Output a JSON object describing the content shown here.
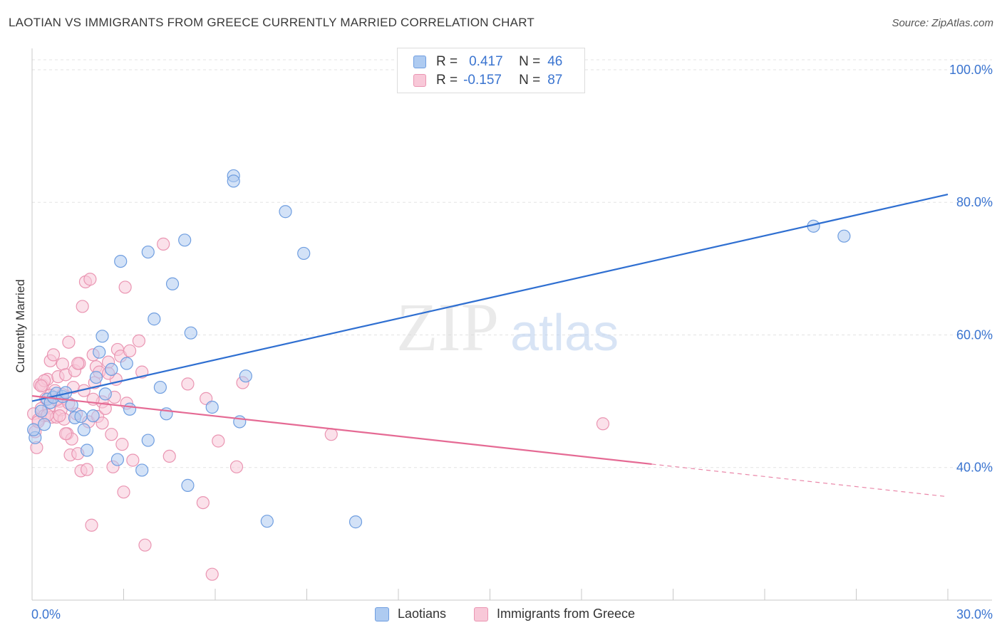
{
  "header": {
    "title": "LAOTIAN VS IMMIGRANTS FROM GREECE CURRENTLY MARRIED CORRELATION CHART",
    "source": "Source: ZipAtlas.com"
  },
  "legend_top": {
    "rows": [
      {
        "r_label": "R =",
        "r_value": "0.417",
        "n_label": "N =",
        "n_value": "46"
      },
      {
        "r_label": "R =",
        "r_value": "-0.157",
        "n_label": "N =",
        "n_value": "87"
      }
    ]
  },
  "watermark": {
    "zip": "ZIP",
    "atlas": "atlas"
  },
  "colors": {
    "blue_fill": "#aecbf1",
    "blue_stroke": "#6f9ee0",
    "blue_line": "#2f6fd1",
    "pink_fill": "#f8c8d8",
    "pink_stroke": "#ea95b2",
    "pink_line": "#e56a94",
    "tick_label": "#3a74d0",
    "grid": "#e3e3e3"
  },
  "chart_data": {
    "type": "scatter",
    "title": "LAOTIAN VS IMMIGRANTS FROM GREECE CURRENTLY MARRIED CORRELATION CHART",
    "xlabel": "",
    "ylabel": "Currently Married",
    "xlim": [
      0,
      30
    ],
    "ylim": [
      20,
      103
    ],
    "x_tick_labels": [
      "0.0%",
      "30.0%"
    ],
    "y_ticks": [
      40,
      60,
      80,
      100
    ],
    "y_tick_labels": [
      "40.0%",
      "60.0%",
      "80.0%",
      "100.0%"
    ],
    "grid": true,
    "legend_position": "top-center",
    "series": [
      {
        "name": "Laotians",
        "color": "#6f9ee0",
        "r": 0.417,
        "n": 46,
        "trend": {
          "x": [
            0,
            30
          ],
          "y": [
            50.0,
            81.2
          ],
          "dashed_from": null
        },
        "points": [
          [
            0.1,
            44.5
          ],
          [
            0.3,
            48.5
          ],
          [
            0.4,
            46.5
          ],
          [
            0.5,
            50.3
          ],
          [
            0.6,
            49.8
          ],
          [
            0.7,
            50.6
          ],
          [
            0.8,
            51.2
          ],
          [
            1.0,
            50.7
          ],
          [
            1.1,
            51.3
          ],
          [
            1.3,
            49.4
          ],
          [
            1.4,
            47.5
          ],
          [
            1.6,
            47.7
          ],
          [
            1.7,
            45.7
          ],
          [
            1.8,
            42.6
          ],
          [
            2.0,
            47.8
          ],
          [
            2.1,
            53.6
          ],
          [
            2.2,
            57.4
          ],
          [
            2.3,
            59.8
          ],
          [
            2.4,
            51.1
          ],
          [
            2.6,
            54.8
          ],
          [
            2.8,
            41.2
          ],
          [
            2.9,
            71.1
          ],
          [
            3.1,
            55.7
          ],
          [
            3.2,
            48.8
          ],
          [
            3.6,
            39.6
          ],
          [
            3.8,
            44.1
          ],
          [
            3.8,
            72.5
          ],
          [
            4.0,
            62.4
          ],
          [
            4.2,
            52.1
          ],
          [
            4.4,
            48.1
          ],
          [
            4.6,
            67.7
          ],
          [
            5.0,
            74.3
          ],
          [
            5.1,
            37.3
          ],
          [
            5.2,
            60.3
          ],
          [
            5.9,
            49.1
          ],
          [
            6.6,
            84.0
          ],
          [
            6.6,
            83.2
          ],
          [
            6.8,
            46.9
          ],
          [
            7.0,
            53.8
          ],
          [
            7.7,
            31.9
          ],
          [
            8.3,
            78.6
          ],
          [
            8.9,
            72.3
          ],
          [
            10.6,
            31.8
          ],
          [
            25.6,
            76.4
          ],
          [
            26.6,
            74.9
          ],
          [
            0.05,
            45.7
          ]
        ]
      },
      {
        "name": "Immigrants from Greece",
        "color": "#ea95b2",
        "r": -0.157,
        "n": 87,
        "trend": {
          "x": [
            0,
            30
          ],
          "y": [
            50.8,
            35.6
          ],
          "dashed_from": 20.3
        },
        "points": [
          [
            0.05,
            48.1
          ],
          [
            0.1,
            45.4
          ],
          [
            0.15,
            43.0
          ],
          [
            0.2,
            47.2
          ],
          [
            0.25,
            52.5
          ],
          [
            0.3,
            48.9
          ],
          [
            0.35,
            52.4
          ],
          [
            0.4,
            47.8
          ],
          [
            0.45,
            50.4
          ],
          [
            0.5,
            53.3
          ],
          [
            0.55,
            49.0
          ],
          [
            0.6,
            56.1
          ],
          [
            0.65,
            47.6
          ],
          [
            0.7,
            57.0
          ],
          [
            0.75,
            51.6
          ],
          [
            0.8,
            47.6
          ],
          [
            0.85,
            53.7
          ],
          [
            0.9,
            50.0
          ],
          [
            0.95,
            48.7
          ],
          [
            1.0,
            55.6
          ],
          [
            1.05,
            47.3
          ],
          [
            1.1,
            54.0
          ],
          [
            1.15,
            45.1
          ],
          [
            1.2,
            58.9
          ],
          [
            1.25,
            41.9
          ],
          [
            1.3,
            44.3
          ],
          [
            1.35,
            52.1
          ],
          [
            1.4,
            54.6
          ],
          [
            1.45,
            48.1
          ],
          [
            1.5,
            42.1
          ],
          [
            1.55,
            55.7
          ],
          [
            1.6,
            39.5
          ],
          [
            1.65,
            64.3
          ],
          [
            1.7,
            51.6
          ],
          [
            1.75,
            68.0
          ],
          [
            1.8,
            39.7
          ],
          [
            1.85,
            46.9
          ],
          [
            1.9,
            68.4
          ],
          [
            1.95,
            31.3
          ],
          [
            2.0,
            57.0
          ],
          [
            2.05,
            52.8
          ],
          [
            2.1,
            55.2
          ],
          [
            2.15,
            47.7
          ],
          [
            2.2,
            54.4
          ],
          [
            2.3,
            49.9
          ],
          [
            2.4,
            48.9
          ],
          [
            2.5,
            55.9
          ],
          [
            2.6,
            45.0
          ],
          [
            2.65,
            40.1
          ],
          [
            2.7,
            50.6
          ],
          [
            2.75,
            53.3
          ],
          [
            2.8,
            57.8
          ],
          [
            2.9,
            56.8
          ],
          [
            2.95,
            43.5
          ],
          [
            3.0,
            36.3
          ],
          [
            3.05,
            67.2
          ],
          [
            3.1,
            49.7
          ],
          [
            3.2,
            57.6
          ],
          [
            3.3,
            41.1
          ],
          [
            3.5,
            59.1
          ],
          [
            3.6,
            54.4
          ],
          [
            3.7,
            28.3
          ],
          [
            4.3,
            73.7
          ],
          [
            4.5,
            41.7
          ],
          [
            5.1,
            52.6
          ],
          [
            5.6,
            34.7
          ],
          [
            5.7,
            50.4
          ],
          [
            5.9,
            23.9
          ],
          [
            6.1,
            44.0
          ],
          [
            6.7,
            40.1
          ],
          [
            6.9,
            52.8
          ],
          [
            9.8,
            45.0
          ],
          [
            18.7,
            46.6
          ],
          [
            0.4,
            53.1
          ],
          [
            0.6,
            50.9
          ],
          [
            0.9,
            47.8
          ],
          [
            1.0,
            51.0
          ],
          [
            1.2,
            49.7
          ],
          [
            1.5,
            55.7
          ],
          [
            2.0,
            50.3
          ],
          [
            2.3,
            46.7
          ],
          [
            2.5,
            54.2
          ],
          [
            0.2,
            46.9
          ],
          [
            0.3,
            52.3
          ],
          [
            0.5,
            47.9
          ],
          [
            0.8,
            50.2
          ],
          [
            1.1,
            45.1
          ]
        ]
      }
    ]
  },
  "legend_bottom": {
    "items": [
      {
        "label": "Laotians"
      },
      {
        "label": "Immigrants from Greece"
      }
    ]
  }
}
